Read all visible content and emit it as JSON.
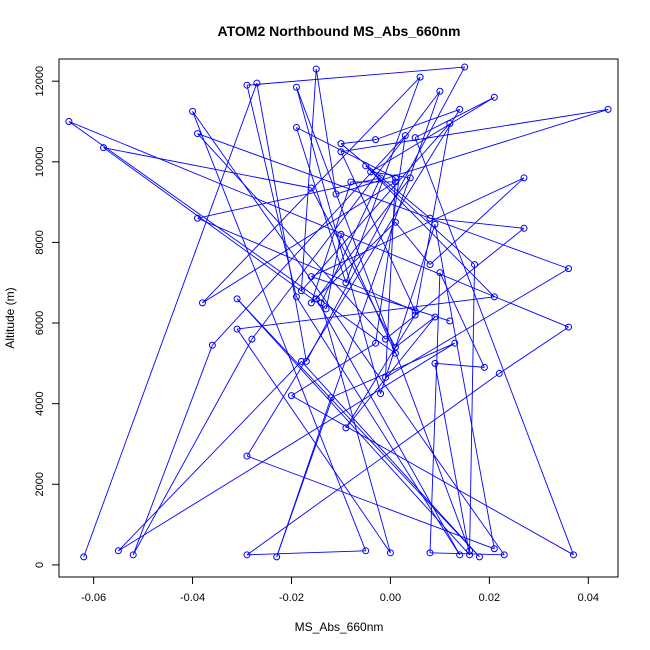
{
  "chart_data": {
    "type": "line",
    "title": "ATOM2 Northbound MS_Abs_660nm",
    "xlabel": "MS_Abs_660nm",
    "ylabel": "Altitude (m)",
    "xlim": [
      -0.067,
      0.046
    ],
    "ylim": [
      -300,
      12550
    ],
    "xticks": [
      -0.06,
      -0.04,
      -0.02,
      0.0,
      0.02,
      0.04
    ],
    "xtick_labels": [
      "-0.06",
      "-0.04",
      "-0.02",
      "0.00",
      "0.02",
      "0.04"
    ],
    "yticks": [
      0,
      2000,
      4000,
      6000,
      8000,
      10000,
      12000
    ],
    "ytick_labels": [
      "0",
      "2000",
      "4000",
      "6000",
      "8000",
      "10000",
      "12000"
    ],
    "grid": false,
    "legend": "none",
    "series": [
      {
        "color": "#0000ff",
        "marker": "open-circle",
        "x": [
          -0.062,
          -0.027,
          -0.017,
          0.015,
          -0.029,
          -0.019,
          0.014,
          -0.015,
          0.004,
          -0.004,
          0.021,
          0.005,
          0.037,
          -0.02,
          -0.003,
          0.003,
          -0.036,
          -0.052,
          -0.028,
          0.01,
          -0.023,
          -0.012,
          0.013,
          -0.055,
          -0.018,
          0.018,
          -0.031,
          0.016,
          0.009,
          0.019,
          0.01,
          0.008,
          0.023,
          -0.04,
          -0.005,
          -0.029,
          0.022,
          0.036,
          -0.065,
          0.001,
          -0.01,
          -0.013,
          -0.058,
          -0.016,
          0.001,
          0.009,
          -0.009,
          0.005,
          0.012,
          -0.018,
          -0.015,
          -0.011,
          0.044,
          -0.01,
          0.005,
          -0.039,
          -0.002,
          -0.014,
          0.0,
          -0.031,
          0.021,
          -0.005,
          0.017,
          0.016,
          -0.019,
          -0.002,
          0.009,
          0.021,
          -0.029,
          0.014,
          -0.003,
          -0.01,
          0.008,
          0.027,
          -0.001,
          -0.039,
          0.036,
          -0.001,
          0.001,
          -0.019,
          -0.009,
          0.006,
          -0.038,
          0.001,
          -0.008,
          -0.016,
          0.001,
          0.008,
          0.027,
          -0.016,
          0.012
        ],
        "y": [
          200,
          11950,
          5050,
          12350,
          11900,
          6650,
          250,
          6600,
          9600,
          9750,
          11600,
          10600,
          250,
          4200,
          5500,
          10650,
          5450,
          250,
          5600,
          11750,
          200,
          4150,
          5500,
          350,
          5050,
          200,
          6600,
          250,
          5000,
          4900,
          7250,
          300,
          250,
          11250,
          350,
          250,
          4750,
          5900,
          11000,
          5250,
          8200,
          6350,
          10350,
          9350,
          5400,
          6150,
          3400,
          6200,
          10950,
          6800,
          12300,
          9200,
          11300,
          10250,
          6300,
          8600,
          9600,
          6500,
          300,
          5850,
          6650,
          9900,
          7450,
          350,
          11850,
          4250,
          8450,
          400,
          2700,
          11300,
          10550,
          10450,
          8600,
          8350,
          5600,
          10700,
          7350,
          4650,
          9600,
          10850,
          7000,
          12100,
          6500,
          9500,
          9500,
          6500,
          8500,
          7450,
          9600,
          7150,
          6050
        ]
      }
    ]
  }
}
